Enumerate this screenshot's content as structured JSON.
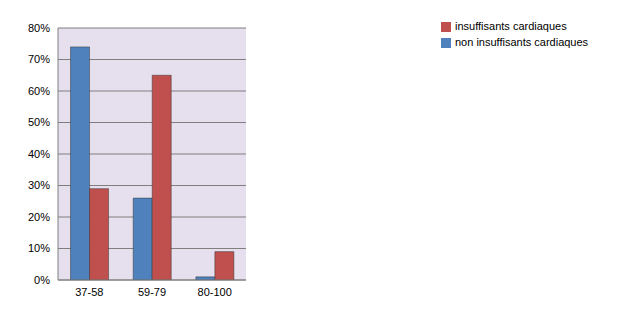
{
  "chart_data": {
    "type": "bar",
    "categories": [
      "37-58",
      "59-79",
      "80-100"
    ],
    "series": [
      {
        "name": "non insuffisants cardiaques",
        "color": "#4f81bd",
        "values": [
          74,
          26,
          1
        ]
      },
      {
        "name": "insuffisants cardiaques",
        "color": "#c0504d",
        "values": [
          29,
          65,
          9
        ]
      }
    ],
    "ylim": [
      0,
      80
    ],
    "yticks": [
      {
        "value": 0,
        "label": "0%"
      },
      {
        "value": 10,
        "label": "10%"
      },
      {
        "value": 20,
        "label": "20%"
      },
      {
        "value": 30,
        "label": "30%"
      },
      {
        "value": 40,
        "label": "40%"
      },
      {
        "value": 50,
        "label": "50%"
      },
      {
        "value": 60,
        "label": "60%"
      },
      {
        "value": 70,
        "label": "70%"
      },
      {
        "value": 80,
        "label": "80%"
      }
    ],
    "grid": true,
    "legend": "upper right"
  }
}
